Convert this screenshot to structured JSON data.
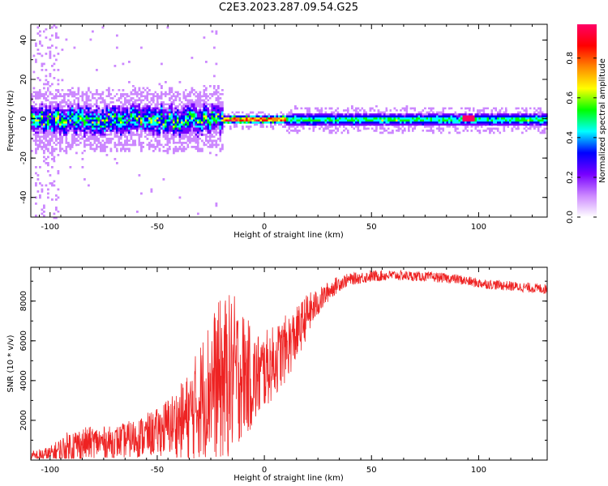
{
  "title": "C2E3.2023.287.09.54.G25",
  "colors": {
    "signal_line": "#ee2222",
    "axes": "#000000",
    "background": "#ffffff"
  },
  "chart_data": [
    {
      "type": "heatmap",
      "title": "C2E3.2023.287.09.54.G25",
      "xlabel": "Height of straight line (km)",
      "ylabel": "Frequency (Hz)",
      "xlim": [
        -109,
        132
      ],
      "ylim": [
        -50,
        48
      ],
      "x_ticks": [
        -100,
        -50,
        0,
        50,
        100
      ],
      "y_ticks": [
        -40,
        -20,
        0,
        20,
        40
      ],
      "colorbar": {
        "label": "Normalized spectral amplitude",
        "range": [
          0.0,
          0.97
        ],
        "ticks": [
          0.0,
          0.2,
          0.4,
          0.6,
          0.8
        ],
        "colormap": [
          "#ffffff",
          "#cc88ff",
          "#7700ff",
          "#0000ff",
          "#00ffff",
          "#00ff00",
          "#ffff00",
          "#ff8800",
          "#ff0000",
          "#ff0066"
        ]
      },
      "band": {
        "center_hz": 0,
        "segments": [
          {
            "x_from": -109,
            "x_to": -20,
            "halfwidth_hz": 7,
            "peak": 0.5,
            "character": "noisy, broad"
          },
          {
            "x_from": -20,
            "x_to": 10,
            "halfwidth_hz": 2,
            "peak": 0.95,
            "character": "sharp, strong"
          },
          {
            "x_from": 10,
            "x_to": 132,
            "halfwidth_hz": 3,
            "peak": 0.55,
            "character": "steady"
          }
        ],
        "hotspot": {
          "x": 95,
          "y_hz": 1,
          "value": 0.92
        }
      }
    },
    {
      "type": "line",
      "xlabel": "Height of straight line (km)",
      "ylabel": "SNR (10 * v/v)",
      "xlim": [
        -109,
        132
      ],
      "ylim": [
        0,
        9700
      ],
      "x_ticks": [
        -100,
        -50,
        0,
        50,
        100
      ],
      "y_ticks": [
        2000,
        4000,
        6000,
        8000
      ],
      "series": [
        {
          "name": "SNR",
          "color": "#ee2222",
          "x": [
            -109,
            -100,
            -90,
            -80,
            -70,
            -60,
            -50,
            -45,
            -40,
            -35,
            -30,
            -25,
            -20,
            -15,
            -10,
            -5,
            0,
            5,
            10,
            15,
            20,
            25,
            30,
            35,
            40,
            50,
            60,
            70,
            80,
            90,
            100,
            110,
            120,
            132
          ],
          "trend": [
            150,
            300,
            700,
            900,
            900,
            1100,
            1400,
            1700,
            1900,
            2200,
            3000,
            3800,
            4000,
            4300,
            4400,
            4000,
            4500,
            5000,
            5600,
            6300,
            7300,
            7900,
            8500,
            8900,
            9100,
            9250,
            9300,
            9250,
            9200,
            9100,
            8900,
            8800,
            8700,
            8600
          ],
          "spread": [
            300,
            400,
            900,
            800,
            800,
            1000,
            1200,
            1500,
            1800,
            2300,
            3000,
            3600,
            4200,
            4200,
            3200,
            2500,
            2000,
            1800,
            1700,
            1400,
            1100,
            700,
            500,
            400,
            300,
            300,
            250,
            250,
            250,
            250,
            250,
            250,
            250,
            250
          ]
        }
      ]
    }
  ]
}
